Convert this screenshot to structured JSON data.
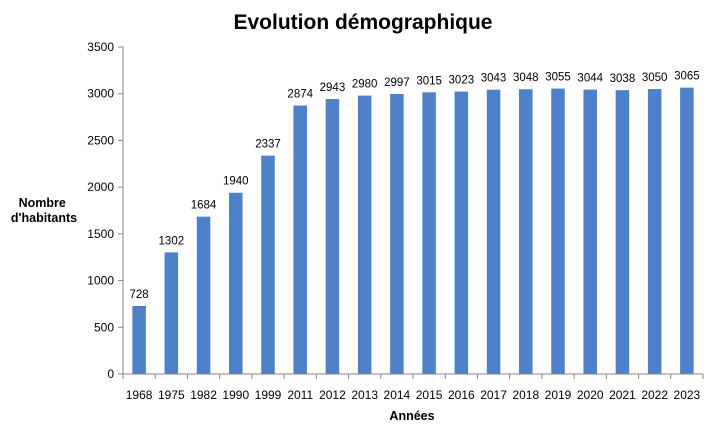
{
  "chart_data": {
    "type": "bar",
    "title": "Evolution démographique",
    "xlabel": "Années",
    "ylabel_lines": [
      "Nombre",
      "d'habitants"
    ],
    "categories": [
      "1968",
      "1975",
      "1982",
      "1990",
      "1999",
      "2011",
      "2012",
      "2013",
      "2014",
      "2015",
      "2016",
      "2017",
      "2018",
      "2019",
      "2020",
      "2021",
      "2022",
      "2023"
    ],
    "values": [
      728,
      1302,
      1684,
      1940,
      2337,
      2874,
      2943,
      2980,
      2997,
      3015,
      3023,
      3043,
      3048,
      3055,
      3044,
      3038,
      3050,
      3065
    ],
    "yticks": [
      0,
      500,
      1000,
      1500,
      2000,
      2500,
      3000,
      3500
    ],
    "ylim": [
      0,
      3500
    ],
    "grid": false,
    "legend": "none",
    "bar_color": "#4F81C8",
    "data_labels": true
  }
}
